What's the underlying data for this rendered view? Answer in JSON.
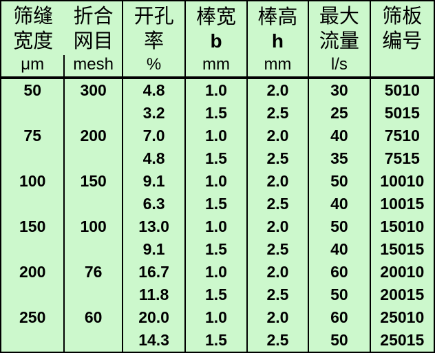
{
  "table": {
    "columns": [
      {
        "title_line1": "筛缝",
        "title_line2": "宽度",
        "unit": "μm"
      },
      {
        "title_line1": "折合",
        "title_line2": "网目",
        "unit": "mesh"
      },
      {
        "title_line1": "开孔",
        "title_line2": "率",
        "unit": "%"
      },
      {
        "title_line1": "棒宽",
        "title_line2": "b",
        "unit": "mm"
      },
      {
        "title_line1": "棒高",
        "title_line2": "h",
        "unit": "mm"
      },
      {
        "title_line1": "最大",
        "title_line2": "流量",
        "unit": "l/s"
      },
      {
        "title_line1": "筛板",
        "title_line2": "编号",
        "unit": ""
      }
    ],
    "rows": [
      [
        "50",
        "300",
        "4.8",
        "1.0",
        "2.0",
        "30",
        "5010"
      ],
      [
        "",
        "",
        "3.2",
        "1.5",
        "2.5",
        "25",
        "5015"
      ],
      [
        "75",
        "200",
        "7.0",
        "1.0",
        "2.0",
        "40",
        "7510"
      ],
      [
        "",
        "",
        "4.8",
        "1.5",
        "2.5",
        "35",
        "7515"
      ],
      [
        "100",
        "150",
        "9.1",
        "1.0",
        "2.0",
        "50",
        "10010"
      ],
      [
        "",
        "",
        "6.3",
        "1.5",
        "2.5",
        "40",
        "10015"
      ],
      [
        "150",
        "100",
        "13.0",
        "1.0",
        "2.0",
        "50",
        "15010"
      ],
      [
        "",
        "",
        "9.1",
        "1.5",
        "2.5",
        "40",
        "15015"
      ],
      [
        "200",
        "76",
        "16.7",
        "1.0",
        "2.0",
        "60",
        "20010"
      ],
      [
        "",
        "",
        "11.8",
        "1.5",
        "2.5",
        "50",
        "20015"
      ],
      [
        "250",
        "60",
        "20.0",
        "1.0",
        "2.0",
        "60",
        "25010"
      ],
      [
        "",
        "",
        "14.3",
        "1.5",
        "2.5",
        "50",
        "25015"
      ]
    ],
    "colors": {
      "background": "#ccf8cc",
      "border": "#000000",
      "text": "#000000"
    }
  },
  "chart_data": {
    "type": "table",
    "title": "",
    "column_headers": [
      "筛缝宽度 μm",
      "折合网目 mesh",
      "开孔率 %",
      "棒宽 b mm",
      "棒高 h mm",
      "最大流量 l/s",
      "筛板编号"
    ],
    "rows": [
      [
        "50",
        "300",
        "4.8",
        "1.0",
        "2.0",
        "30",
        "5010"
      ],
      [
        "",
        "",
        "3.2",
        "1.5",
        "2.5",
        "25",
        "5015"
      ],
      [
        "75",
        "200",
        "7.0",
        "1.0",
        "2.0",
        "40",
        "7510"
      ],
      [
        "",
        "",
        "4.8",
        "1.5",
        "2.5",
        "35",
        "7515"
      ],
      [
        "100",
        "150",
        "9.1",
        "1.0",
        "2.0",
        "50",
        "10010"
      ],
      [
        "",
        "",
        "6.3",
        "1.5",
        "2.5",
        "40",
        "10015"
      ],
      [
        "150",
        "100",
        "13.0",
        "1.0",
        "2.0",
        "50",
        "15010"
      ],
      [
        "",
        "",
        "9.1",
        "1.5",
        "2.5",
        "40",
        "15015"
      ],
      [
        "200",
        "76",
        "16.7",
        "1.0",
        "2.0",
        "60",
        "20010"
      ],
      [
        "",
        "",
        "11.8",
        "1.5",
        "2.5",
        "50",
        "20015"
      ],
      [
        "250",
        "60",
        "20.0",
        "1.0",
        "2.0",
        "60",
        "25010"
      ],
      [
        "",
        "",
        "14.3",
        "1.5",
        "2.5",
        "50",
        "25015"
      ]
    ]
  }
}
